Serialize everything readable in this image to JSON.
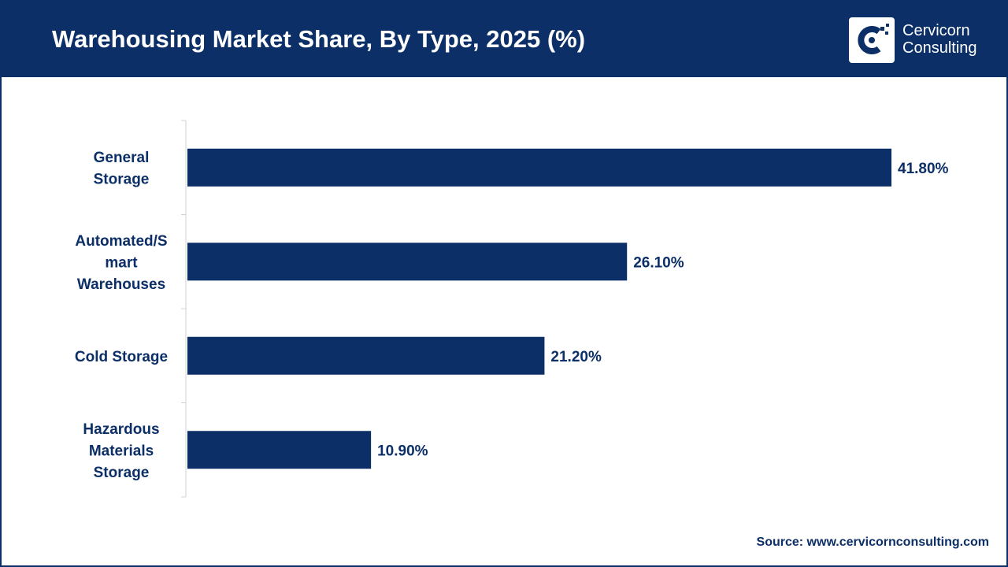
{
  "header": {
    "title": "Warehousing Market Share, By Type, 2025 (%)",
    "logo_line1": "Cervicorn",
    "logo_line2": "Consulting"
  },
  "footer": {
    "source": "Source: www.cervicornconsulting.com"
  },
  "colors": {
    "header_bg": "#0b2f66",
    "bar": "#0b2f66",
    "text": "#0b2f66"
  },
  "chart_data": {
    "type": "bar",
    "orientation": "horizontal",
    "title": "Warehousing Market Share, By Type, 2025 (%)",
    "categories": [
      [
        "General",
        "Storage"
      ],
      [
        "Automated/S",
        "mart",
        "Warehouses"
      ],
      [
        "Cold Storage"
      ],
      [
        "Hazardous",
        "Materials",
        "Storage"
      ]
    ],
    "values": [
      41.8,
      26.1,
      21.2,
      10.9
    ],
    "value_labels": [
      "41.80%",
      "26.10%",
      "21.20%",
      "10.90%"
    ],
    "xlim": [
      0,
      41.8
    ],
    "grid": false,
    "legend": "none"
  }
}
